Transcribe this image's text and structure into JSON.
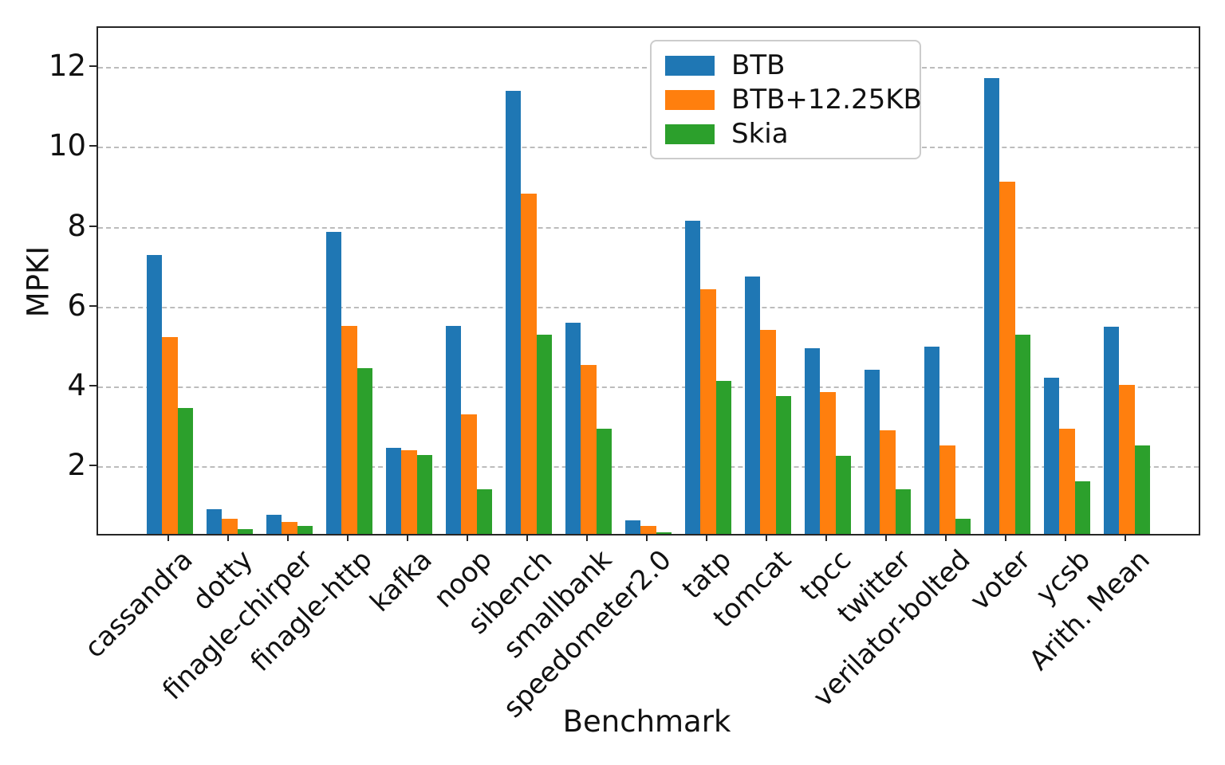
{
  "figure": {
    "background": "#ffffff",
    "axis_color": "#262626",
    "grid_color": "#bcbcbc",
    "text_color": "#111111"
  },
  "chart_data": {
    "type": "bar",
    "title": "",
    "xlabel": "Benchmark",
    "ylabel": "MPKI",
    "categories": [
      "cassandra",
      "dotty",
      "finagle-chirper",
      "finagle-http",
      "kafka",
      "noop",
      "sibench",
      "smallbank",
      "speedometer2.0",
      "tatp",
      "tomcat",
      "tpcc",
      "twitter",
      "verilator-bolted",
      "voter",
      "ycsb",
      "Arith. Mean"
    ],
    "series": [
      {
        "name": "BTB",
        "color": "#1f77b4",
        "values": [
          7.32,
          0.95,
          0.8,
          7.9,
          2.48,
          5.53,
          11.42,
          5.62,
          0.66,
          8.17,
          6.77,
          4.97,
          4.44,
          5.01,
          11.75,
          4.24,
          5.51
        ]
      },
      {
        "name": "BTB+12.25KB",
        "color": "#ff7f0e",
        "values": [
          5.26,
          0.7,
          0.62,
          5.53,
          2.42,
          3.33,
          8.86,
          4.56,
          0.52,
          6.45,
          5.43,
          3.89,
          2.93,
          2.55,
          9.15,
          2.97,
          4.07
        ]
      },
      {
        "name": "Skia",
        "color": "#2ca02c",
        "values": [
          3.48,
          0.45,
          0.52,
          4.48,
          2.3,
          1.45,
          5.32,
          2.97,
          0.37,
          4.17,
          3.78,
          2.29,
          1.44,
          0.71,
          5.31,
          1.65,
          2.55
        ]
      }
    ],
    "yticks": [
      2,
      4,
      6,
      8,
      10,
      12
    ],
    "ylim": [
      0.33,
      13.0
    ],
    "grid": "horizontal dashed, behind bars",
    "legend_position": "upper right inside plot"
  }
}
